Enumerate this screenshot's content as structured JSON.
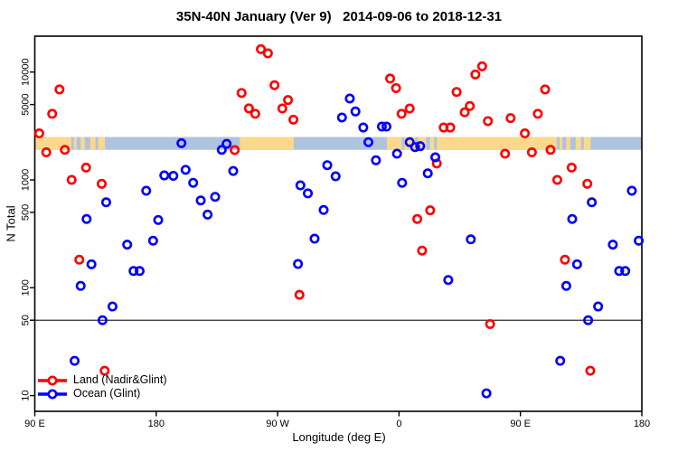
{
  "title": "35N-40N January (Ver 9)   2014-09-06 to 2018-12-31",
  "colors": {
    "land_series": "#FF0000",
    "ocean_series": "#0000FF",
    "strip_land": "#FBD88C",
    "strip_ocean": "#AFC3DF",
    "axis": "#000000",
    "reference_line": "#2B2B2B"
  },
  "legend": {
    "items": [
      {
        "label": "Land (Nadir&Glint)",
        "color": "#FF0000"
      },
      {
        "label": "Ocean (Glint)",
        "color": "#0000FF"
      }
    ]
  },
  "chart_data": {
    "type": "scatter",
    "title": "35N-40N January (Ver 9)   2014-09-06 to 2018-12-31",
    "xlabel": "Longitude (deg E)",
    "ylabel": "N Total",
    "x_scale": "linear",
    "y_scale": "log",
    "x_range_axis_degE": [
      90,
      540
    ],
    "x_axis_note": "longitude axis wraps eastward: 90E,180,90W,0,90E,180",
    "x_ticks": [
      {
        "lon": 90,
        "label": "90 E"
      },
      {
        "lon": 180,
        "label": "180"
      },
      {
        "lon": 270,
        "label": "90 W"
      },
      {
        "lon": 360,
        "label": "0"
      },
      {
        "lon": 450,
        "label": "90 E"
      },
      {
        "lon": 540,
        "label": "180"
      }
    ],
    "y_ticks": [
      10000,
      5000,
      1000,
      500,
      100,
      50,
      10
    ],
    "y_range": [
      7.5,
      21500
    ],
    "reference_line_n": 50,
    "land_ocean_strip": {
      "n_top": 2500,
      "n_bottom": 1900,
      "ocean_color": "#AFC3DF",
      "land_color": "#FBD88C",
      "land_segments": [
        [
          90,
          117
        ],
        [
          119,
          121
        ],
        [
          124,
          127
        ],
        [
          131,
          135
        ],
        [
          137,
          142
        ],
        [
          242,
          282
        ],
        [
          351,
          362
        ],
        [
          364,
          372
        ],
        [
          374,
          380
        ],
        [
          383,
          386
        ],
        [
          388,
          477
        ],
        [
          479,
          481
        ],
        [
          484,
          487
        ],
        [
          491,
          495
        ],
        [
          497,
          502
        ]
      ]
    },
    "point_format": "[longitude_axis_degE, n_total]",
    "series": [
      {
        "name": "Land (Nadir&Glint)",
        "color": "#FF0000",
        "points": [
          [
            93.3,
            2700
          ],
          [
            98.5,
            1800
          ],
          [
            102.9,
            4100
          ],
          [
            108.3,
            6900
          ],
          [
            112.3,
            1900
          ],
          [
            117.3,
            1000
          ],
          [
            123,
            182
          ],
          [
            128,
            1300
          ],
          [
            139.6,
            920
          ],
          [
            141.8,
            17
          ],
          [
            238.2,
            1890
          ],
          [
            243.3,
            6400
          ],
          [
            248.7,
            4600
          ],
          [
            253.4,
            4100
          ],
          [
            257.6,
            16300
          ],
          [
            262.8,
            14900
          ],
          [
            267.7,
            7550
          ],
          [
            273.5,
            4590
          ],
          [
            277.7,
            5500
          ],
          [
            281.7,
            3620
          ],
          [
            286.2,
            86
          ],
          [
            353.4,
            8700
          ],
          [
            357.8,
            7100
          ],
          [
            361.9,
            4100
          ],
          [
            367.9,
            4590
          ],
          [
            373.5,
            434
          ],
          [
            377.1,
            221
          ],
          [
            383.1,
            522
          ],
          [
            388,
            1420
          ],
          [
            393.1,
            3060
          ],
          [
            398,
            3060
          ],
          [
            402.7,
            6540
          ],
          [
            408.7,
            4230
          ],
          [
            412.5,
            4840
          ],
          [
            416.6,
            9500
          ],
          [
            421.6,
            11300
          ],
          [
            425.9,
            3510
          ],
          [
            427.5,
            46
          ],
          [
            438.6,
            1750
          ],
          [
            442.7,
            3740
          ],
          [
            453.3,
            2700
          ],
          [
            458.5,
            1800
          ],
          [
            462.9,
            4100
          ],
          [
            468.3,
            6900
          ],
          [
            472.3,
            1900
          ],
          [
            477.3,
            1000
          ],
          [
            483,
            182
          ],
          [
            488,
            1300
          ],
          [
            499.6,
            920
          ],
          [
            501.8,
            17
          ]
        ]
      },
      {
        "name": "Ocean (Glint)",
        "color": "#0000FF",
        "points": [
          [
            119.5,
            21
          ],
          [
            124,
            104
          ],
          [
            128.4,
            434
          ],
          [
            132,
            165
          ],
          [
            140.2,
            50
          ],
          [
            142.9,
            620
          ],
          [
            147.6,
            67
          ],
          [
            158.5,
            251
          ],
          [
            163.2,
            143
          ],
          [
            167.7,
            143
          ],
          [
            172.6,
            793
          ],
          [
            177.7,
            273
          ],
          [
            181.5,
            425
          ],
          [
            186,
            1100
          ],
          [
            192.7,
            1090
          ],
          [
            198.7,
            2190
          ],
          [
            201.8,
            1240
          ],
          [
            207.4,
            940
          ],
          [
            213,
            645
          ],
          [
            218.1,
            477
          ],
          [
            223.7,
            697
          ],
          [
            228.6,
            1900
          ],
          [
            232.2,
            2160
          ],
          [
            237.1,
            1210
          ],
          [
            285.1,
            166
          ],
          [
            286.9,
            890
          ],
          [
            292.4,
            750
          ],
          [
            297.4,
            285
          ],
          [
            304.1,
            526
          ],
          [
            306.8,
            1370
          ],
          [
            313,
            1080
          ],
          [
            317.7,
            3790
          ],
          [
            323.5,
            5680
          ],
          [
            327.7,
            4310
          ],
          [
            333.5,
            3060
          ],
          [
            337.3,
            2240
          ],
          [
            342.9,
            1520
          ],
          [
            347.3,
            3120
          ],
          [
            350.7,
            3120
          ],
          [
            358.5,
            1750
          ],
          [
            362.3,
            940
          ],
          [
            367.9,
            2240
          ],
          [
            371.9,
            2015
          ],
          [
            375.7,
            2055
          ],
          [
            381.3,
            1150
          ],
          [
            386.9,
            1620
          ],
          [
            396.5,
            118
          ],
          [
            413.2,
            281
          ],
          [
            424.8,
            10.5
          ],
          [
            479.5,
            21
          ],
          [
            484,
            104
          ],
          [
            488.4,
            434
          ],
          [
            492,
            165
          ],
          [
            500.2,
            50
          ],
          [
            502.9,
            620
          ],
          [
            507.6,
            67
          ],
          [
            518.5,
            251
          ],
          [
            523.2,
            143
          ],
          [
            527.7,
            143
          ],
          [
            532.6,
            793
          ],
          [
            537.7,
            273
          ]
        ]
      }
    ]
  }
}
